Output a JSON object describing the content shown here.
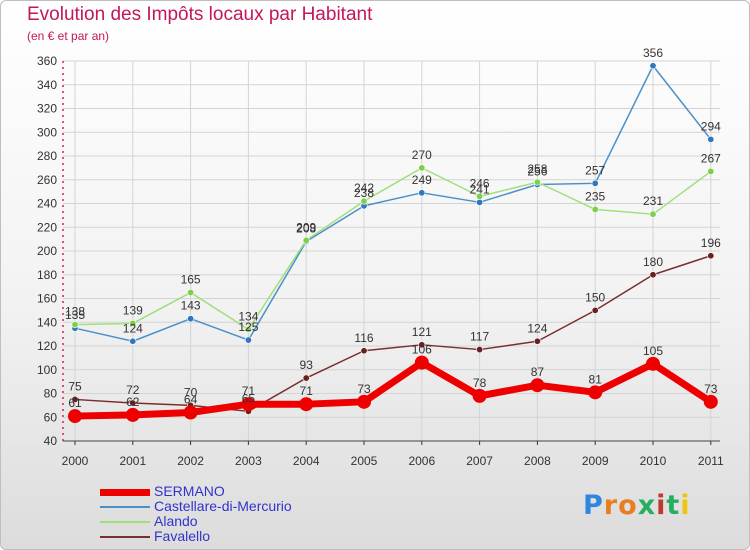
{
  "title": "Evolution des Impôts locaux par Habitant",
  "subtitle": "(en € et par an)",
  "brand": {
    "text": "Proxiti",
    "letter_colors": [
      "#2e86de",
      "#e67e22",
      "#e67e22",
      "#27ae60",
      "#c0392b",
      "#27ae60",
      "#f1c40f"
    ]
  },
  "chart_data": {
    "type": "line",
    "categories": [
      "2000",
      "2001",
      "2002",
      "2003",
      "2004",
      "2005",
      "2006",
      "2007",
      "2008",
      "2009",
      "2010",
      "2011"
    ],
    "ylim": [
      40,
      360
    ],
    "yticks": [
      40,
      60,
      80,
      100,
      120,
      140,
      160,
      180,
      200,
      220,
      240,
      260,
      280,
      300,
      320,
      340,
      360
    ],
    "grid": true,
    "legend_position": "bottom-left",
    "series": [
      {
        "name": "Castellare-di-Mercurio",
        "color": "#4a90c8",
        "marker": "#2f78bd",
        "values": [
          135,
          124,
          143,
          125,
          208,
          238,
          249,
          241,
          256,
          257,
          356,
          294
        ]
      },
      {
        "name": "Alando",
        "color": "#9ee07a",
        "marker": "#7ccf4a",
        "values": [
          138,
          139,
          165,
          134,
          209,
          242,
          270,
          246,
          258,
          235,
          231,
          267
        ]
      },
      {
        "name": "Favalello",
        "color": "#7a2e2e",
        "marker": "#6b1f1f",
        "values": [
          75,
          72,
          70,
          65,
          93,
          116,
          121,
          117,
          124,
          150,
          180,
          196
        ]
      },
      {
        "name": "SERMANO",
        "color": "#ee0000",
        "marker": "#ee0000",
        "values": [
          61,
          62,
          64,
          71,
          71,
          73,
          106,
          78,
          87,
          81,
          105,
          73
        ]
      }
    ],
    "value_labels": [
      {
        "series": "Castellare-di-Mercurio",
        "labels": [
          "135",
          "124",
          "143",
          "125",
          "208",
          "238",
          "249",
          "241",
          "256",
          "257",
          "356",
          "294"
        ]
      },
      {
        "series": "Alando",
        "labels": [
          "138",
          "139",
          "165",
          "134",
          "209",
          "242",
          "270",
          "246",
          "258",
          "235",
          "231",
          "267"
        ]
      },
      {
        "series": "Favalello",
        "labels": [
          "75",
          "72",
          "70",
          "65",
          "93",
          "116",
          "121",
          "117",
          "124",
          "150",
          "180",
          "196"
        ]
      },
      {
        "series": "SERMANO",
        "labels": [
          "61",
          "62",
          "64",
          "71",
          "71",
          "73",
          "106",
          "78",
          "87",
          "81",
          "105",
          "73"
        ]
      }
    ]
  },
  "legend": [
    {
      "label": "SERMANO",
      "color": "#ee0000",
      "thick": true
    },
    {
      "label": "Castellare-di-Mercurio",
      "color": "#4a90c8",
      "thick": false
    },
    {
      "label": "Alando",
      "color": "#9ee07a",
      "thick": false
    },
    {
      "label": "Favalello",
      "color": "#7a2e2e",
      "thick": false
    }
  ]
}
